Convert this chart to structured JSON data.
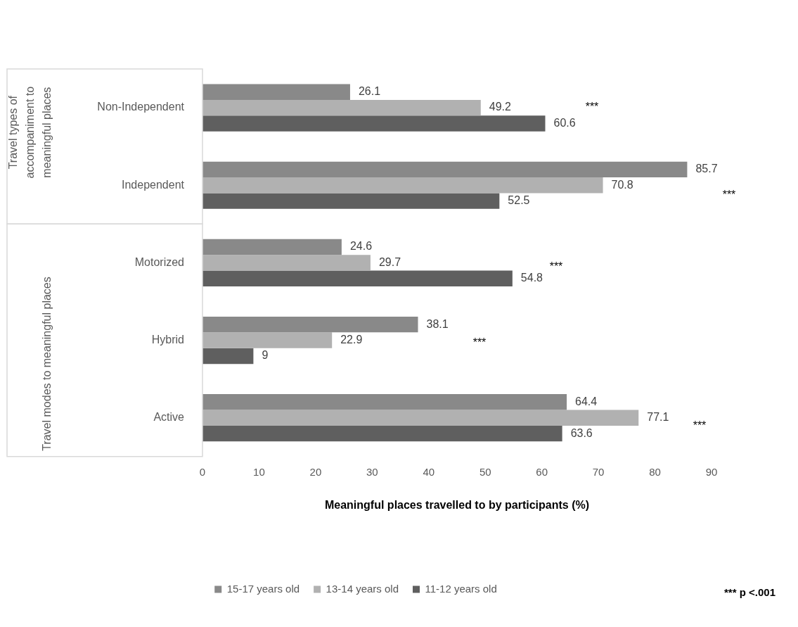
{
  "chart_data": {
    "type": "bar",
    "orientation": "horizontal",
    "xlabel": "Meaningful places travelled to by participants (%)",
    "categories": [
      "Non-Independent",
      "Independent",
      "Motorized",
      "Hybrid",
      "Active"
    ],
    "series": [
      {
        "name": "15-17 years old",
        "color": "#898989",
        "values": [
          26.1,
          85.7,
          24.6,
          38.1,
          64.4
        ]
      },
      {
        "name": "13-14 years old",
        "color": "#b1b1b1",
        "values": [
          49.2,
          70.8,
          29.7,
          22.9,
          77.1
        ]
      },
      {
        "name": "11-12 years old",
        "color": "#5f5f5f",
        "values": [
          60.6,
          52.5,
          54.8,
          9,
          63.6
        ]
      }
    ],
    "xlim": [
      0,
      90
    ],
    "xticks": [
      0,
      10,
      20,
      30,
      40,
      50,
      60,
      70,
      80,
      90
    ],
    "grid": false,
    "legend": "bottom",
    "data_labels": true,
    "annotations": [
      "Travel types of accompaniment to meaningful places",
      "Travel modes to meaningful places",
      "*** p <.001",
      "***",
      "***",
      "***",
      "***",
      "***"
    ]
  }
}
